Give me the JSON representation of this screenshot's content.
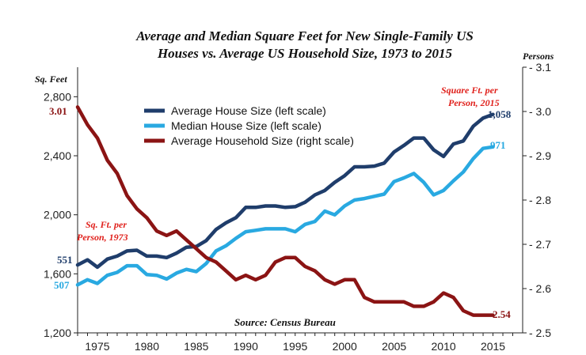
{
  "chart_data": {
    "type": "line",
    "title_line1": "Average and Median Square Feet for New Single-Family US",
    "title_line2": "Houses vs. Average US Household Size, 1973 to 2015",
    "left_axis_label": "Sq. Feet",
    "right_axis_label": "Persons",
    "left_ylim": [
      1200,
      3000
    ],
    "right_ylim": [
      2.5,
      3.1
    ],
    "xlim": [
      1973,
      2018
    ],
    "left_ticks": [
      "1,200",
      "1,600",
      "2,000",
      "2,400",
      "2,800"
    ],
    "left_tick_values": [
      1200,
      1600,
      2000,
      2400,
      2800
    ],
    "right_ticks": [
      "2.5",
      "2.6",
      "2.7",
      "2.8",
      "2.9",
      "3.0",
      "3.1"
    ],
    "right_tick_values": [
      2.5,
      2.6,
      2.7,
      2.8,
      2.9,
      3.0,
      3.1
    ],
    "x_ticks": [
      "1975",
      "1980",
      "1985",
      "1990",
      "1995",
      "2000",
      "2005",
      "2010",
      "2015"
    ],
    "x_tick_values": [
      1975,
      1980,
      1985,
      1990,
      1995,
      2000,
      2005,
      2010,
      2015
    ],
    "x": [
      1973,
      1974,
      1975,
      1976,
      1977,
      1978,
      1979,
      1980,
      1981,
      1982,
      1983,
      1984,
      1985,
      1986,
      1987,
      1988,
      1989,
      1990,
      1991,
      1992,
      1993,
      1994,
      1995,
      1996,
      1997,
      1998,
      1999,
      2000,
      2001,
      2002,
      2003,
      2004,
      2005,
      2006,
      2007,
      2008,
      2009,
      2010,
      2011,
      2012,
      2013,
      2014,
      2015
    ],
    "series": [
      {
        "name": "Average House Size (left scale)",
        "axis": "left",
        "color": "#1f3d6b",
        "values": [
          1660,
          1695,
          1645,
          1700,
          1720,
          1755,
          1760,
          1720,
          1720,
          1710,
          1740,
          1780,
          1785,
          1825,
          1900,
          1945,
          1980,
          2050,
          2050,
          2060,
          2060,
          2050,
          2055,
          2085,
          2135,
          2165,
          2220,
          2265,
          2325,
          2325,
          2330,
          2350,
          2425,
          2470,
          2520,
          2520,
          2440,
          2395,
          2480,
          2500,
          2600,
          2655,
          2680
        ]
      },
      {
        "name": "Median House Size (left scale)",
        "axis": "left",
        "color": "#29a9e1",
        "values": [
          1525,
          1560,
          1535,
          1590,
          1610,
          1655,
          1655,
          1595,
          1590,
          1565,
          1605,
          1630,
          1615,
          1670,
          1755,
          1790,
          1840,
          1885,
          1895,
          1905,
          1905,
          1905,
          1885,
          1935,
          1955,
          2025,
          2000,
          2060,
          2100,
          2110,
          2125,
          2140,
          2225,
          2250,
          2280,
          2220,
          2135,
          2165,
          2230,
          2290,
          2380,
          2450,
          2460
        ]
      },
      {
        "name": "Average Household Size (right scale)",
        "axis": "right",
        "color": "#8b1414",
        "values": [
          3.01,
          2.97,
          2.94,
          2.89,
          2.86,
          2.81,
          2.78,
          2.76,
          2.73,
          2.72,
          2.73,
          2.71,
          2.69,
          2.67,
          2.66,
          2.64,
          2.62,
          2.63,
          2.62,
          2.63,
          2.66,
          2.67,
          2.67,
          2.65,
          2.64,
          2.62,
          2.61,
          2.62,
          2.62,
          2.58,
          2.57,
          2.57,
          2.57,
          2.57,
          2.56,
          2.56,
          2.57,
          2.59,
          2.58,
          2.55,
          2.54,
          2.54,
          2.54
        ]
      }
    ],
    "annotations": {
      "start_household": "3.01",
      "start_avg": "551",
      "start_median": "507",
      "end_household": "2.54",
      "end_avg": "1,058",
      "end_median": "971",
      "start_note_line1": "Sq. Ft. per",
      "start_note_line2": "Person, 1973",
      "end_note_line1": "Square Ft. per",
      "end_note_line2": "Person, 2015"
    },
    "source": "Source: Census Bureau",
    "legend_position": "top-center"
  }
}
